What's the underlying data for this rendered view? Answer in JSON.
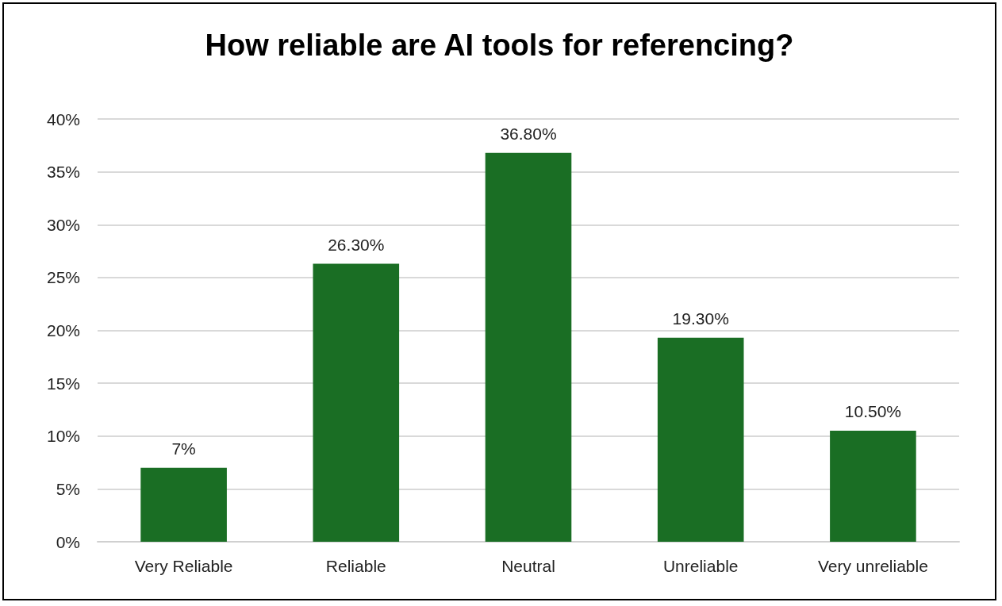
{
  "chart_data": {
    "type": "bar",
    "title": "How reliable are AI tools for referencing?",
    "categories": [
      "Very Reliable",
      "Reliable",
      "Neutral",
      "Unreliable",
      "Very unreliable"
    ],
    "values": [
      7,
      26.3,
      36.8,
      19.3,
      10.5
    ],
    "value_labels": [
      "7%",
      "26.30%",
      "36.80%",
      "19.30%",
      "10.50%"
    ],
    "color": "#1a6e24",
    "ylim": [
      0,
      40
    ],
    "yticks": [
      {
        "value": 0,
        "label": "0%"
      },
      {
        "value": 5,
        "label": "5%"
      },
      {
        "value": 10,
        "label": "10%"
      },
      {
        "value": 15,
        "label": "15%"
      },
      {
        "value": 20,
        "label": "20%"
      },
      {
        "value": 25,
        "label": "25%"
      },
      {
        "value": 30,
        "label": "30%"
      },
      {
        "value": 35,
        "label": "35%"
      },
      {
        "value": 40,
        "label": "40%"
      }
    ],
    "grid": "y"
  }
}
